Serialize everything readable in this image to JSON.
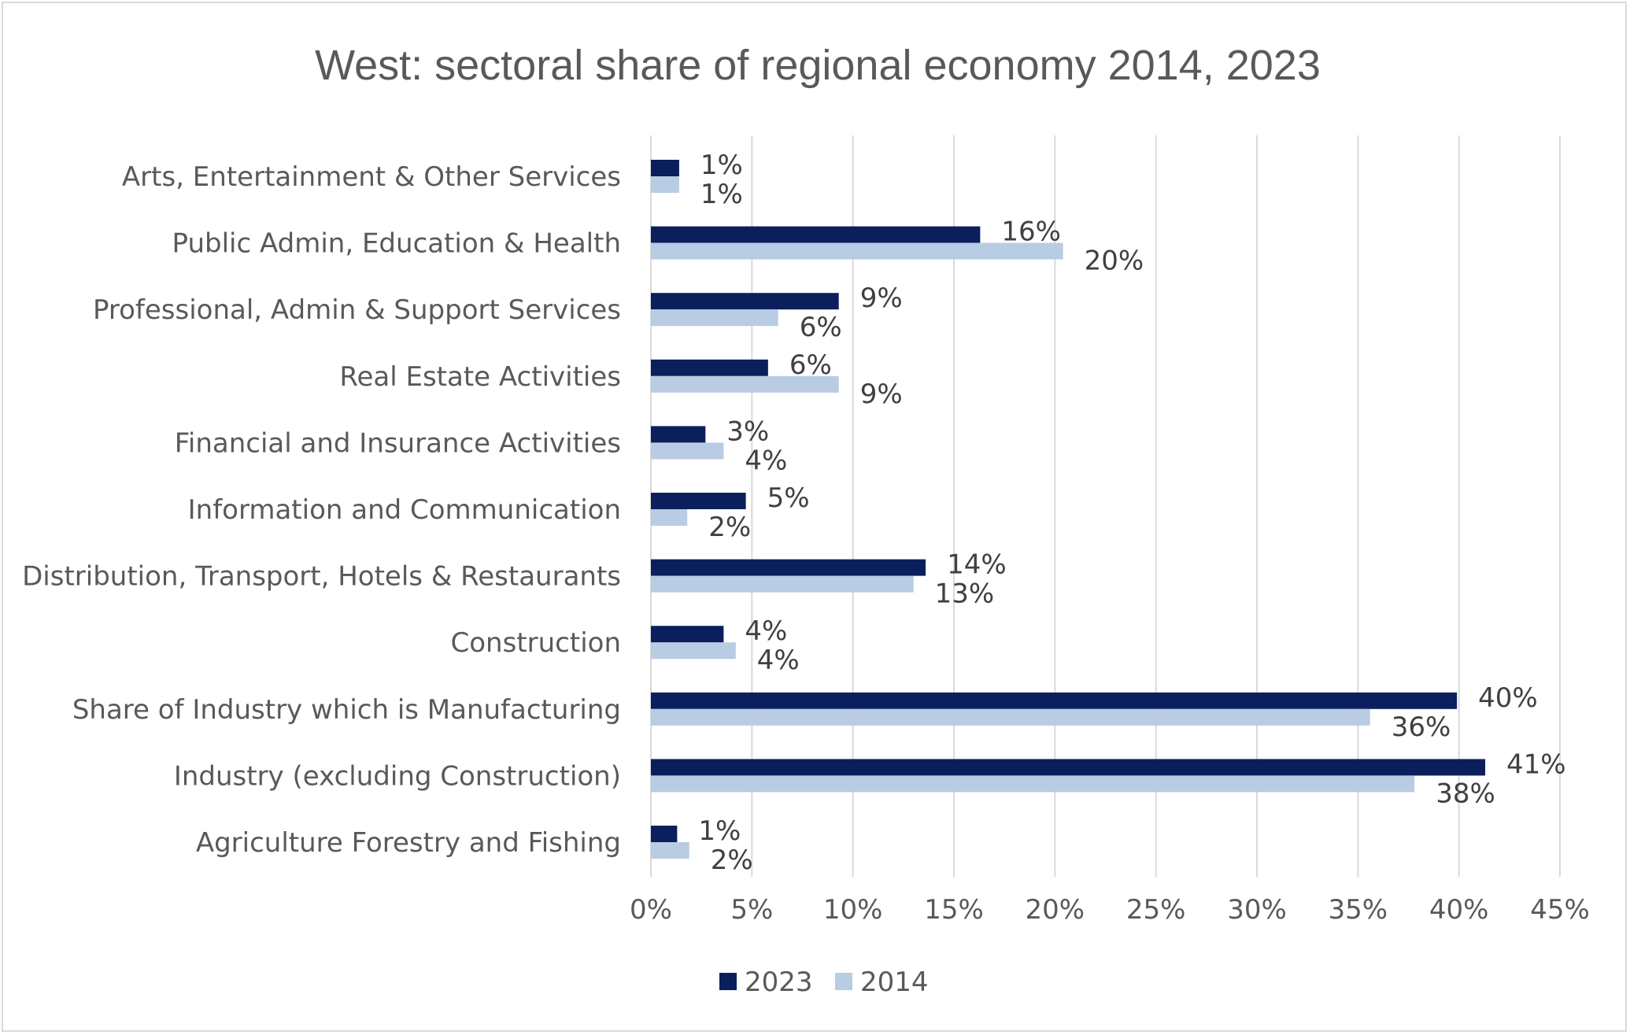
{
  "chart_data": {
    "type": "bar",
    "orientation": "horizontal",
    "title": "West: sectoral share of regional economy 2014, 2023",
    "xlabel": "",
    "ylabel": "",
    "xlim": [
      0,
      45
    ],
    "ticks": [
      0,
      5,
      10,
      15,
      20,
      25,
      30,
      35,
      40,
      45
    ],
    "tick_labels": [
      "0%",
      "5%",
      "10%",
      "15%",
      "20%",
      "25%",
      "30%",
      "35%",
      "40%",
      "45%"
    ],
    "grid": true,
    "legend_position": "bottom",
    "categories": [
      "Arts, Entertainment & Other Services",
      "Public Admin, Education & Health",
      "Professional, Admin & Support Services",
      "Real Estate Activities",
      "Financial and Insurance Activities",
      "Information and Communication",
      "Distribution, Transport, Hotels & Restaurants",
      "Construction",
      "Share of Industry which is Manufacturing ",
      "Industry (excluding Construction)",
      "Agriculture Forestry and Fishing"
    ],
    "series": [
      {
        "name": "2023",
        "color": "#0b1f5c",
        "values": [
          1.4,
          16.3,
          9.3,
          5.8,
          2.7,
          4.7,
          13.6,
          3.6,
          39.9,
          41.3,
          1.3
        ],
        "labels": [
          "1%",
          "16%",
          "9%",
          "6%",
          "3%",
          "5%",
          "14%",
          "4%",
          "40%",
          "41%",
          "1%"
        ]
      },
      {
        "name": "2014",
        "color": "#b8cce4",
        "values": [
          1.4,
          20.4,
          6.3,
          9.3,
          3.6,
          1.8,
          13.0,
          4.2,
          35.6,
          37.8,
          1.9
        ],
        "labels": [
          "1%",
          "20%",
          "6%",
          "9%",
          "4%",
          "2%",
          "13%",
          "4%",
          "36%",
          "38%",
          "2%"
        ]
      }
    ]
  }
}
